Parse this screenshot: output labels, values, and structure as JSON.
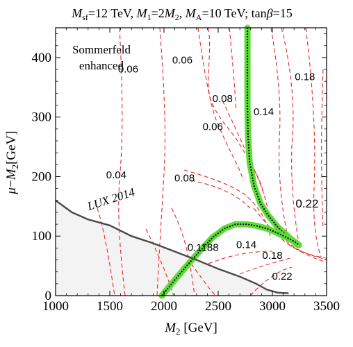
{
  "chart_data": {
    "type": "contour",
    "title": "M_sf=12 TeV, M_1=2M_2, M_A=10 TeV; tanβ=15",
    "title_parts": {
      "msf": "M",
      "msf_sub": "sf",
      "msf_val": "=12 TeV, ",
      "m1": "M",
      "m1_sub": "1",
      "m1_eq": "=2",
      "m2": "M",
      "m2_sub": "2",
      "m2_tail": ", ",
      "ma": "M",
      "ma_sub": "A",
      "ma_val": "=10 TeV; tan",
      "beta": "β",
      "tb_val": "=15"
    },
    "xlabel_parts": {
      "m": "M",
      "sub": "2",
      "unit": " [GeV]"
    },
    "ylabel_parts": {
      "mu": "μ",
      "dash": "−",
      "m": "M",
      "sub": "2",
      "unit": "[GeV]"
    },
    "xlim": [
      1000,
      3500
    ],
    "ylim": [
      0,
      450
    ],
    "x_ticks": [
      "1000",
      "1500",
      "2000",
      "2500",
      "3000",
      "3500"
    ],
    "x_tick_values": [
      1000,
      1500,
      2000,
      2500,
      3000,
      3500
    ],
    "y_ticks": [
      "0",
      "100",
      "200",
      "300",
      "400"
    ],
    "y_tick_values": [
      0,
      100,
      200,
      300,
      400
    ],
    "annotations": {
      "region": [
        "Sommerfeld",
        "enhanced"
      ],
      "lux": "LUX 2014"
    },
    "contour_labels": [
      {
        "text": "0.06",
        "x": 1670,
        "y": 375,
        "size": "normal"
      },
      {
        "text": "0.06",
        "x": 2170,
        "y": 390,
        "size": "normal"
      },
      {
        "text": "0.08",
        "x": 2540,
        "y": 325,
        "size": "normal"
      },
      {
        "text": "0.14",
        "x": 2920,
        "y": 303,
        "size": "normal"
      },
      {
        "text": "0.18",
        "x": 3300,
        "y": 362,
        "size": "normal"
      },
      {
        "text": "0.06",
        "x": 2450,
        "y": 278,
        "size": "normal"
      },
      {
        "text": "0.04",
        "x": 1560,
        "y": 197,
        "size": "normal"
      },
      {
        "text": "0.08",
        "x": 2190,
        "y": 192,
        "size": "normal"
      },
      {
        "text": "0.22",
        "x": 3320,
        "y": 148,
        "size": "large"
      },
      {
        "text": "0.1188",
        "x": 2360,
        "y": 75,
        "size": "normal"
      },
      {
        "text": "0.14",
        "x": 2760,
        "y": 80,
        "size": "normal"
      },
      {
        "text": "0.18",
        "x": 3000,
        "y": 62,
        "size": "normal"
      },
      {
        "text": "0.22",
        "x": 3090,
        "y": 27,
        "size": "normal"
      }
    ],
    "relic_band": {
      "upper_branch": [
        [
          2770,
          450
        ],
        [
          2770,
          370
        ],
        [
          2770,
          320
        ],
        [
          2775,
          270
        ],
        [
          2790,
          225
        ],
        [
          2830,
          185
        ],
        [
          2890,
          155
        ],
        [
          2960,
          135
        ],
        [
          3050,
          115
        ],
        [
          3130,
          102
        ],
        [
          3190,
          92
        ],
        [
          3235,
          85
        ]
      ],
      "lower_branch": [
        [
          1980,
          0
        ],
        [
          2080,
          22
        ],
        [
          2200,
          48
        ],
        [
          2330,
          75
        ],
        [
          2450,
          98
        ],
        [
          2560,
          113
        ],
        [
          2660,
          120
        ],
        [
          2760,
          120
        ],
        [
          2860,
          117
        ],
        [
          2960,
          112
        ],
        [
          3060,
          104
        ],
        [
          3150,
          96
        ],
        [
          3210,
          90
        ],
        [
          3245,
          85
        ]
      ]
    },
    "lux_boundary": [
      [
        1000,
        160
      ],
      [
        1150,
        140
      ],
      [
        1300,
        128
      ],
      [
        1500,
        118
      ],
      [
        1700,
        100
      ],
      [
        1900,
        88
      ],
      [
        2100,
        74
      ],
      [
        2300,
        60
      ],
      [
        2500,
        45
      ],
      [
        2700,
        32
      ],
      [
        2850,
        20
      ],
      [
        2950,
        10
      ],
      [
        3050,
        5
      ],
      [
        3150,
        4
      ]
    ],
    "grid": false,
    "legend": "none"
  }
}
